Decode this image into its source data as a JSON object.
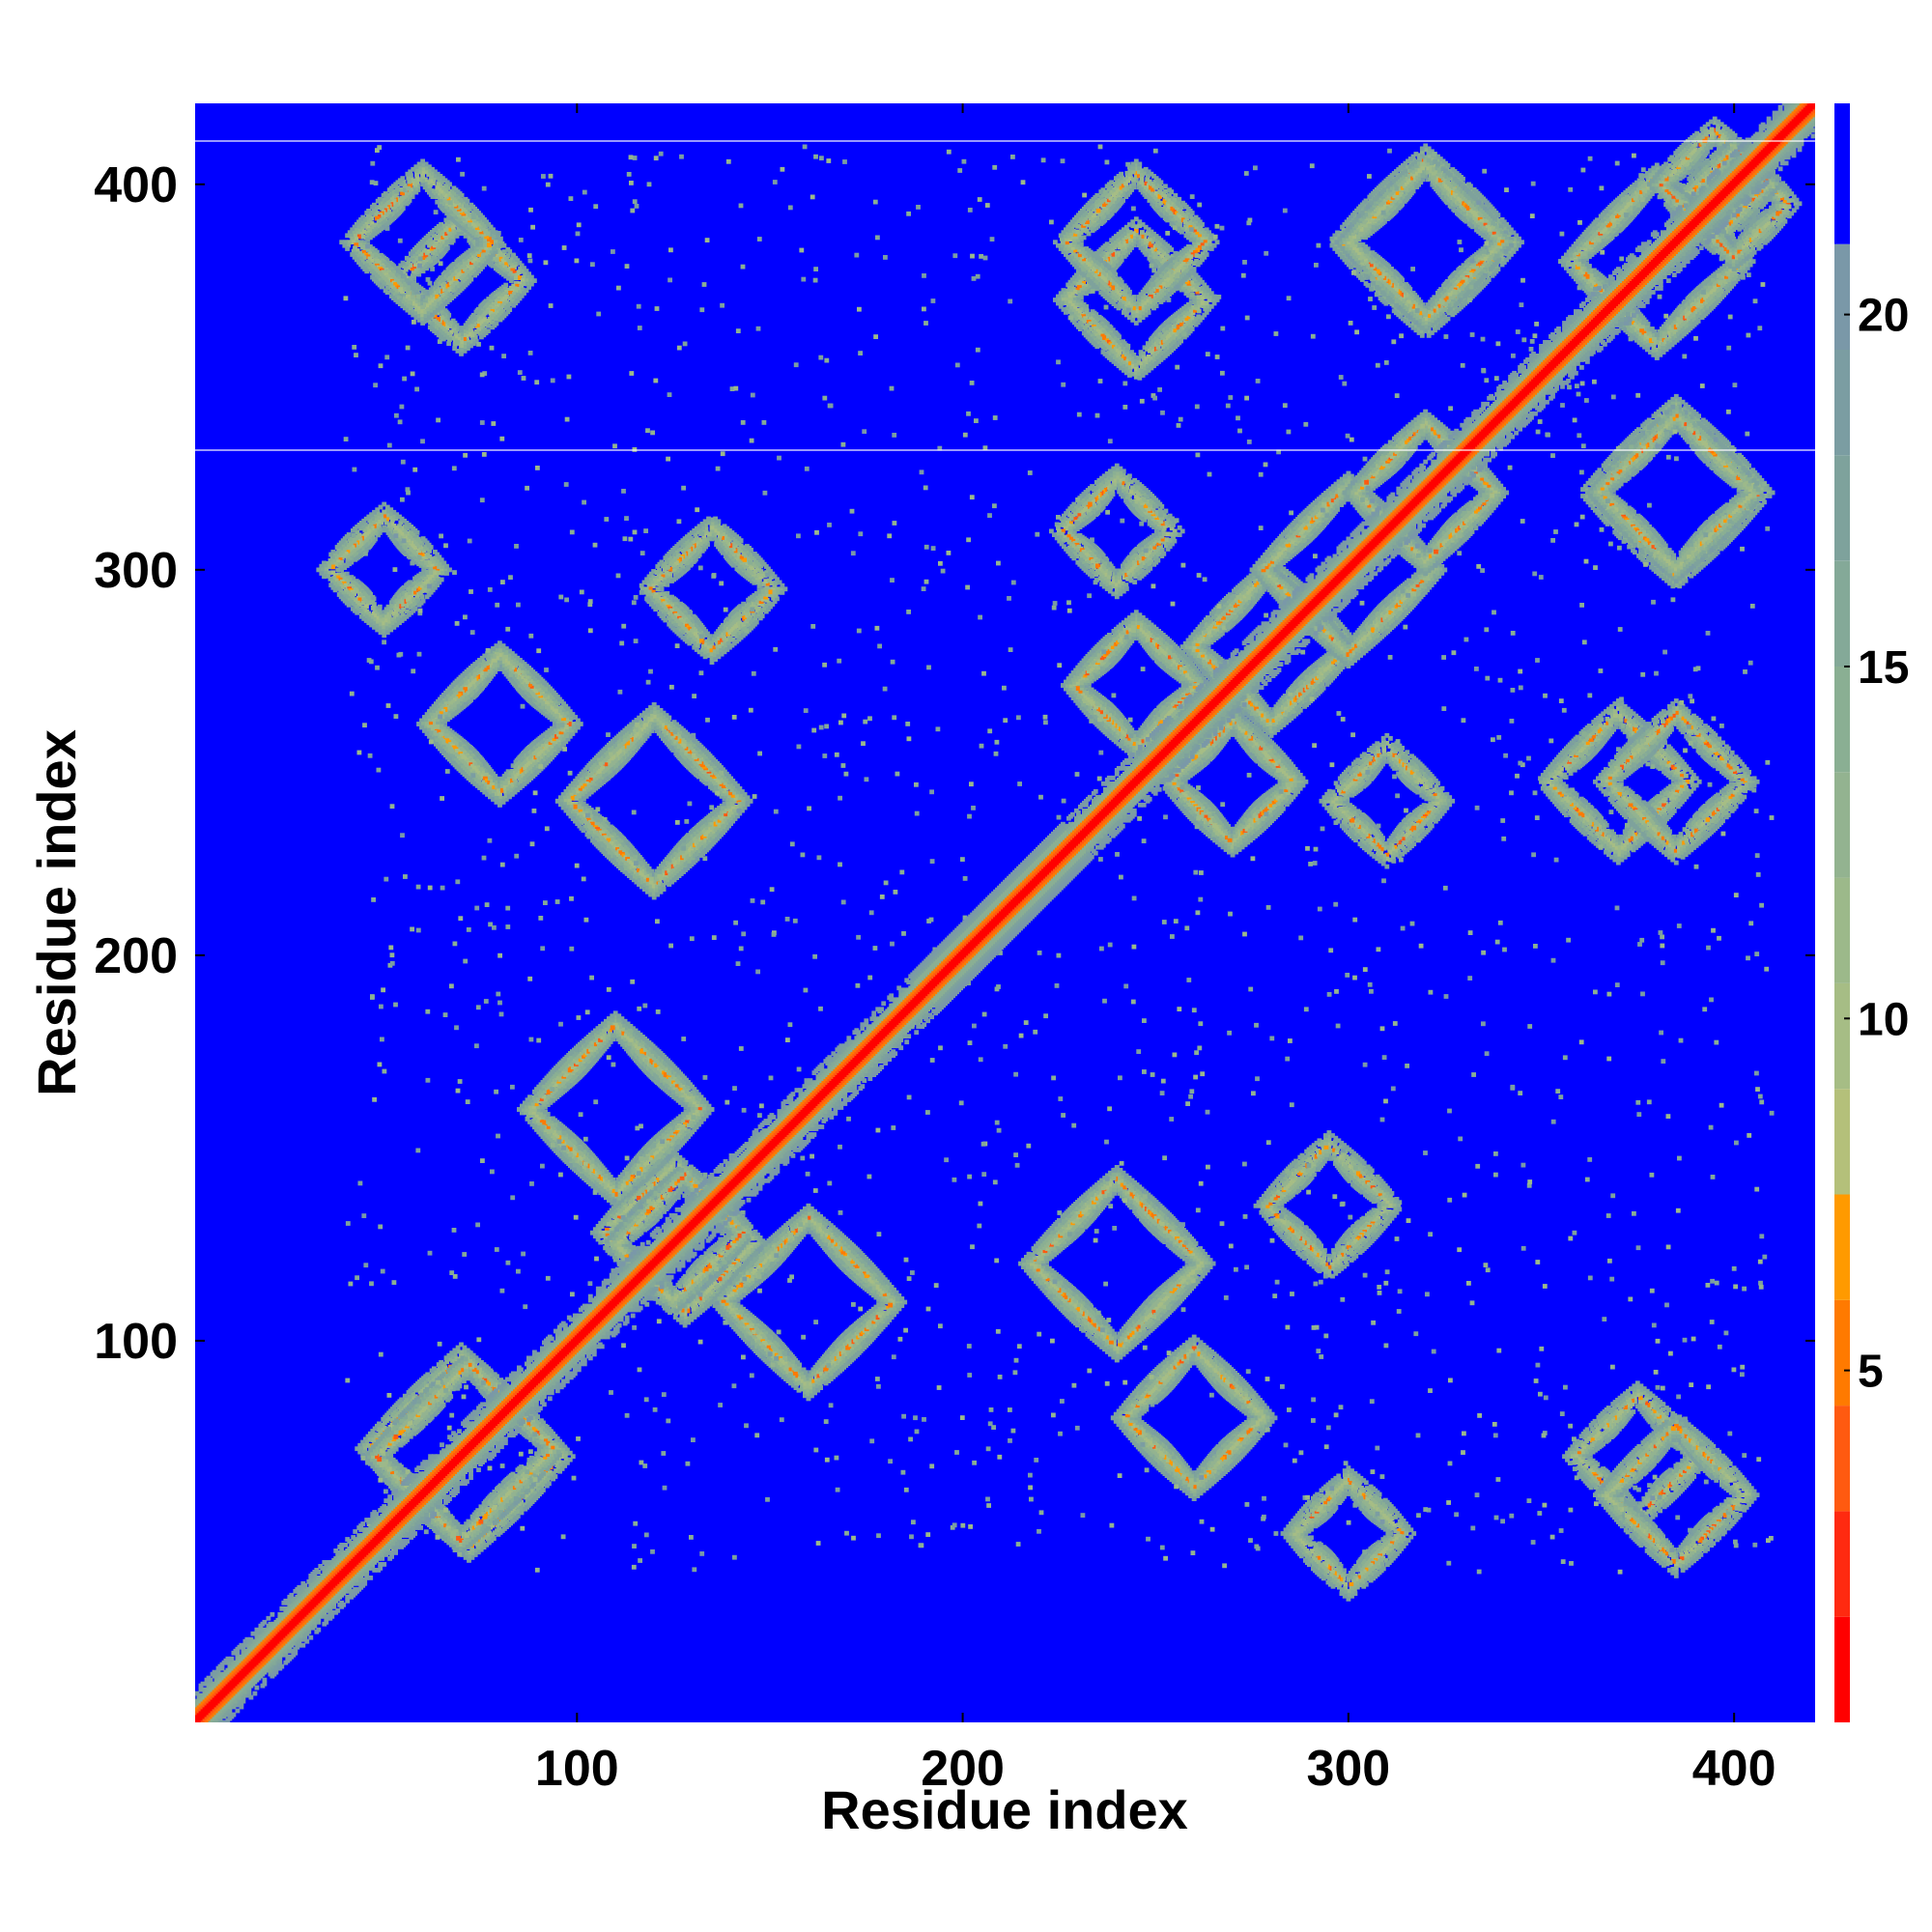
{
  "chart_data": {
    "type": "heatmap",
    "title": "",
    "xlabel": "Residue index",
    "ylabel": "Residue index",
    "xlim": [
      1,
      421
    ],
    "ylim": [
      1,
      421
    ],
    "x_ticks": [
      100,
      200,
      300,
      400
    ],
    "y_ticks": [
      100,
      200,
      300,
      400
    ],
    "colorbar": {
      "ticks": [
        5,
        10,
        15,
        20
      ],
      "range": [
        0,
        23
      ],
      "levels": [
        {
          "max": 1.5,
          "color": "#ff0000"
        },
        {
          "max": 3,
          "color": "#ff2a10"
        },
        {
          "max": 4.5,
          "color": "#ff5a10"
        },
        {
          "max": 6,
          "color": "#ff7a00"
        },
        {
          "max": 7.5,
          "color": "#ff9a00"
        },
        {
          "max": 9,
          "color": "#b4c07a"
        },
        {
          "max": 10.5,
          "color": "#a6bd85"
        },
        {
          "max": 12,
          "color": "#9cb98a"
        },
        {
          "max": 13.5,
          "color": "#93b390"
        },
        {
          "max": 15,
          "color": "#8aaf93"
        },
        {
          "max": 16.5,
          "color": "#84a998"
        },
        {
          "max": 18,
          "color": "#7ea29c"
        },
        {
          "max": 19.5,
          "color": "#7b9da2"
        },
        {
          "max": 21,
          "color": "#7a98a8"
        },
        {
          "max": 23,
          "color": "#0000ff"
        }
      ]
    },
    "background_color": "#0000ff",
    "matrix_description": "symmetric residue-residue distance map; red diagonal band, greenish contact ring patterns",
    "features": [
      {
        "kind": "diagonal",
        "from": 1,
        "to": 421
      },
      {
        "kind": "ring",
        "x": 70,
        "y": 72,
        "r": 24
      },
      {
        "kind": "ring",
        "x": 125,
        "y": 128,
        "r": 18
      },
      {
        "kind": "ring",
        "x": 110,
        "y": 160,
        "r": 22
      },
      {
        "kind": "ring",
        "x": 160,
        "y": 110,
        "r": 22
      },
      {
        "kind": "ring",
        "x": 240,
        "y": 120,
        "r": 22
      },
      {
        "kind": "ring",
        "x": 260,
        "y": 80,
        "r": 18
      },
      {
        "kind": "ring",
        "x": 375,
        "y": 70,
        "r": 16
      },
      {
        "kind": "ring",
        "x": 120,
        "y": 240,
        "r": 22
      },
      {
        "kind": "ring",
        "x": 80,
        "y": 260,
        "r": 18
      },
      {
        "kind": "ring",
        "x": 280,
        "y": 280,
        "r": 20
      },
      {
        "kind": "ring",
        "x": 300,
        "y": 300,
        "r": 22
      },
      {
        "kind": "ring",
        "x": 320,
        "y": 320,
        "r": 18
      },
      {
        "kind": "ring",
        "x": 245,
        "y": 270,
        "r": 16
      },
      {
        "kind": "ring",
        "x": 270,
        "y": 245,
        "r": 16
      },
      {
        "kind": "ring",
        "x": 380,
        "y": 380,
        "r": 22
      },
      {
        "kind": "ring",
        "x": 400,
        "y": 395,
        "r": 14
      },
      {
        "kind": "ring",
        "x": 245,
        "y": 370,
        "r": 18
      },
      {
        "kind": "ring",
        "x": 60,
        "y": 385,
        "r": 18
      },
      {
        "kind": "ring",
        "x": 385,
        "y": 245,
        "r": 18
      },
      {
        "kind": "ring",
        "x": 320,
        "y": 385,
        "r": 22
      },
      {
        "kind": "ring",
        "x": 385,
        "y": 320,
        "r": 20
      },
      {
        "kind": "ring",
        "x": 50,
        "y": 300,
        "r": 14
      },
      {
        "kind": "ring",
        "x": 135,
        "y": 295,
        "r": 16
      },
      {
        "kind": "ring",
        "x": 240,
        "y": 310,
        "r": 14
      }
    ]
  }
}
